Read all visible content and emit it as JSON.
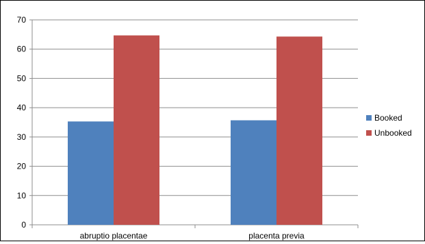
{
  "chart_data": {
    "type": "bar",
    "categories": [
      "abruptio placentae",
      "placenta previa"
    ],
    "series": [
      {
        "name": "Booked",
        "values": [
          35.3,
          35.7
        ],
        "color": "#4F81BD"
      },
      {
        "name": "Unbooked",
        "values": [
          64.7,
          64.3
        ],
        "color": "#C0504D"
      }
    ],
    "ylim": [
      0,
      70
    ],
    "yticks": [
      0,
      10,
      20,
      30,
      40,
      50,
      60,
      70
    ],
    "grid": true,
    "legend_position": "right"
  }
}
